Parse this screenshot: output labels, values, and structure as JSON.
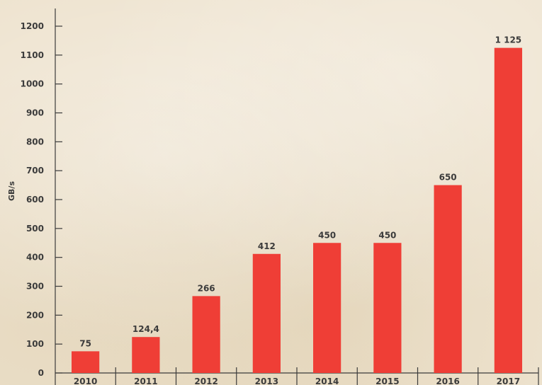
{
  "chart_data": {
    "type": "bar",
    "categories": [
      "2010",
      "2011",
      "2012",
      "2013",
      "2014",
      "2015",
      "2016",
      "2017"
    ],
    "values": [
      75,
      124.4,
      266,
      412,
      450,
      450,
      650,
      1125
    ],
    "value_labels": [
      "75",
      "124,4",
      "266",
      "412",
      "450",
      "450",
      "650",
      "1 125"
    ],
    "ylabel": "GB/s",
    "ylim": [
      0,
      1200
    ],
    "yticks": [
      0,
      100,
      200,
      300,
      400,
      500,
      600,
      700,
      800,
      900,
      1000,
      1100,
      1200
    ],
    "grid": false,
    "bar_color": "#ef3e36",
    "axis_color": "#3b3b3b"
  }
}
